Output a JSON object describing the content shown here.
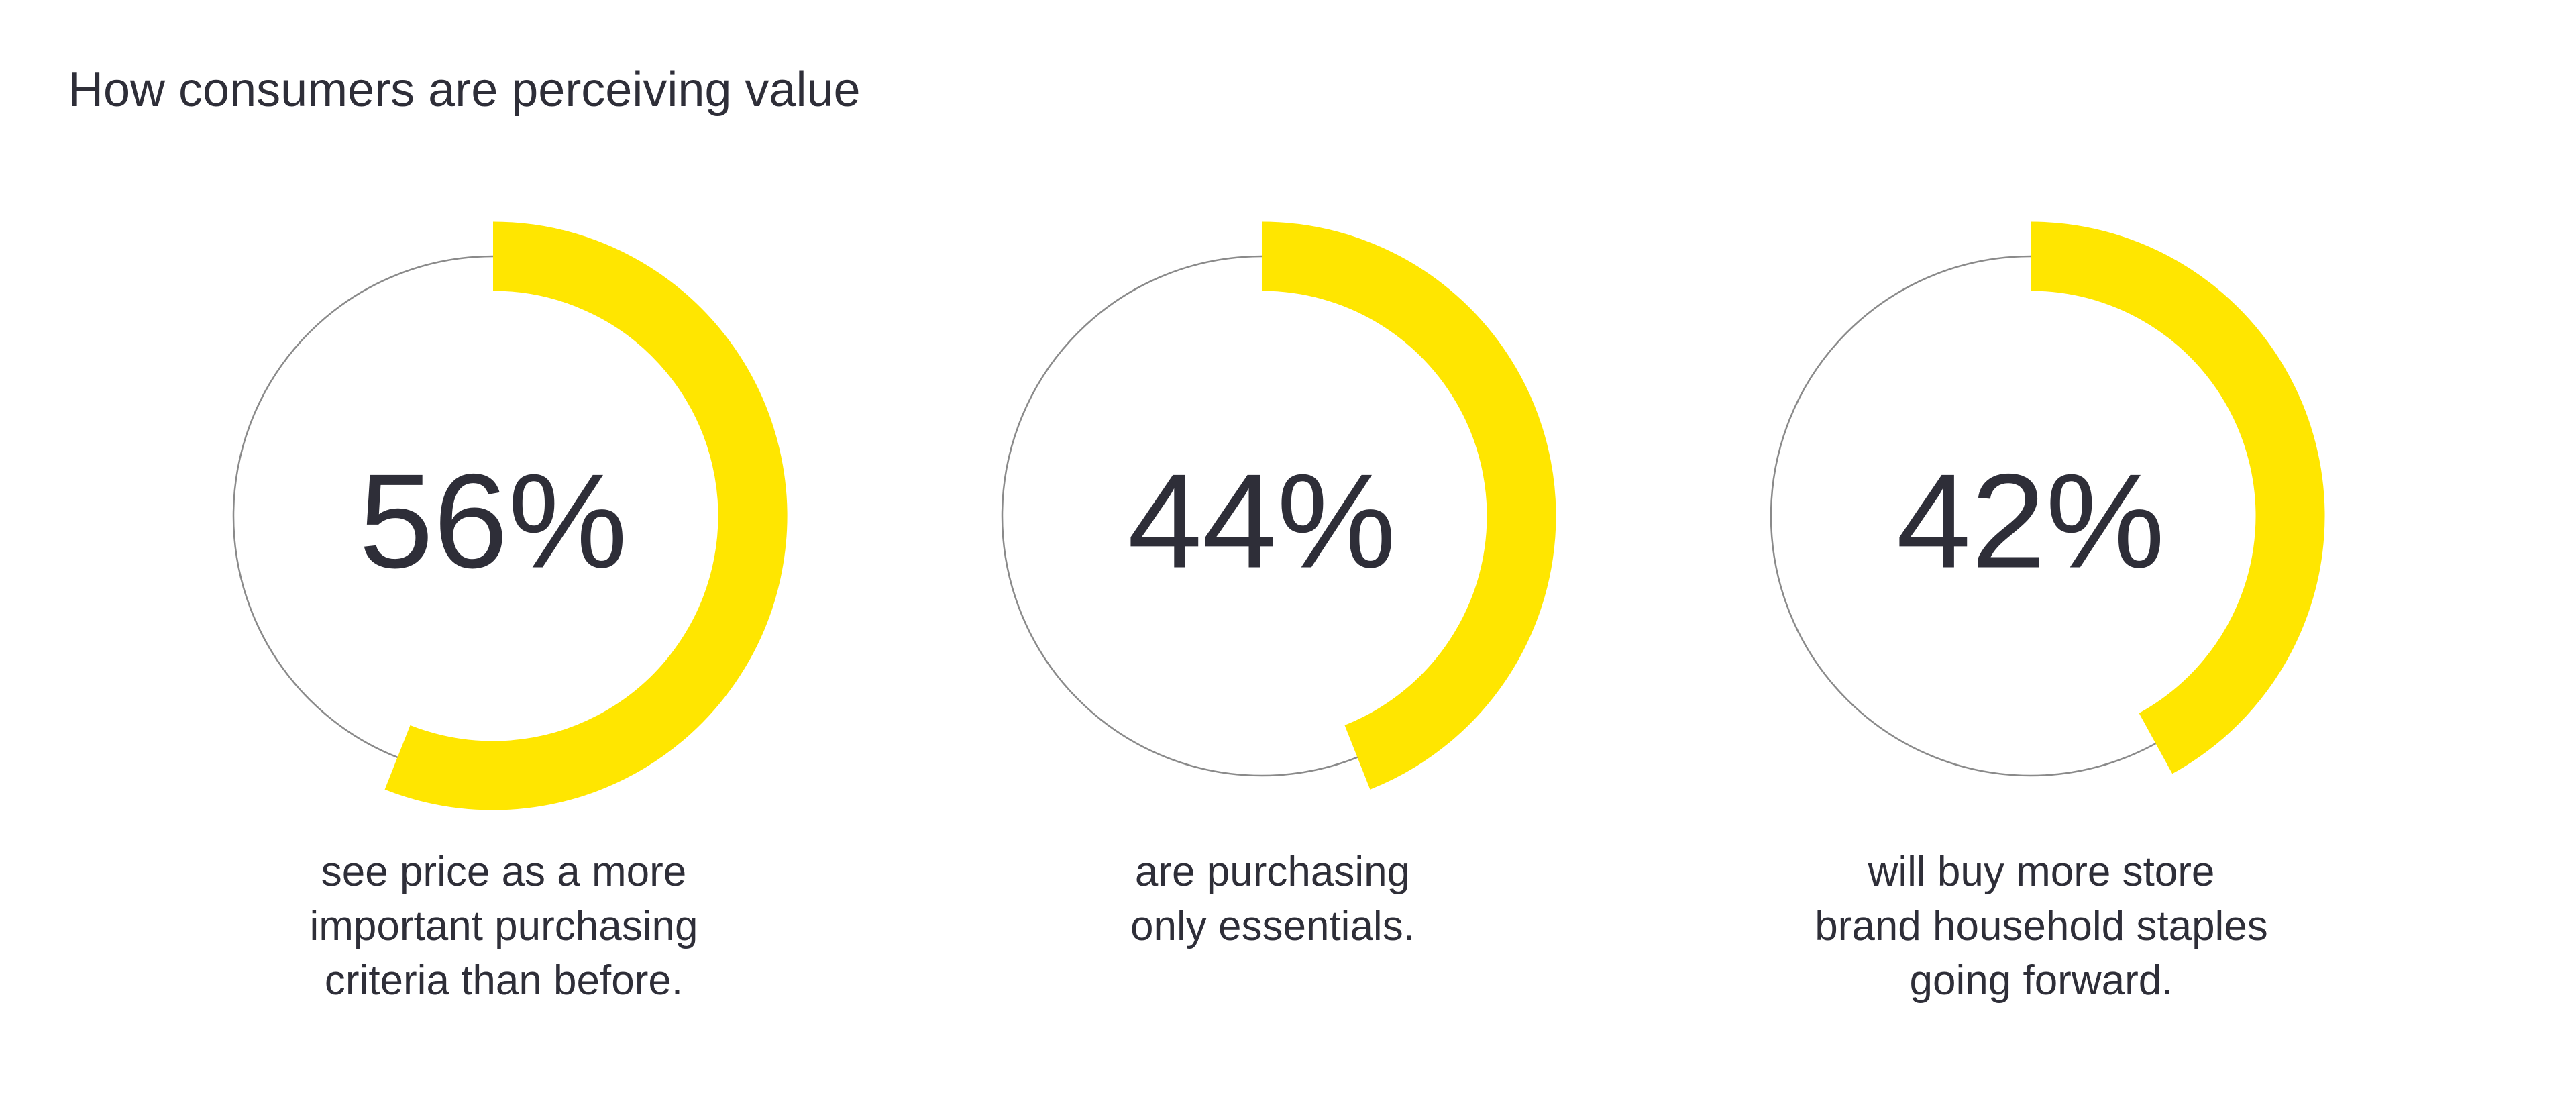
{
  "chart_data": {
    "type": "gauge",
    "title": "How consumers are perceiving value",
    "values": [
      56,
      44,
      42
    ],
    "value_labels": [
      "56%",
      "44%",
      "42%"
    ],
    "captions": [
      [
        "see price as a more",
        "important purchasing",
        "criteria than before."
      ],
      [
        "are purchasing",
        "only essentials."
      ],
      [
        "will buy more store",
        "brand household staples",
        "going forward."
      ]
    ],
    "ylim": [
      0,
      100
    ],
    "color": "#ffe600"
  }
}
